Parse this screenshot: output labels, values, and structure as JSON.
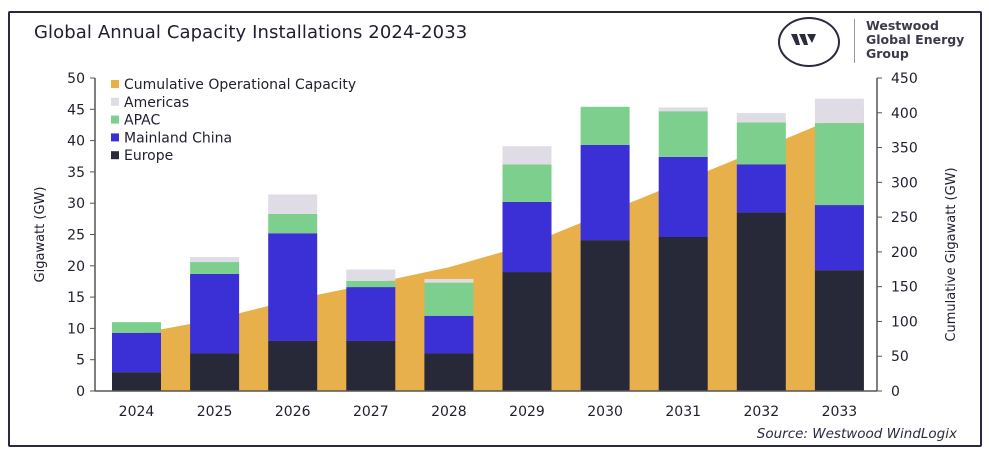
{
  "header": {
    "title": "Global Annual Capacity Installations 2024-2033",
    "logo": {
      "name": "westwood-logo",
      "text": [
        "Westwood",
        "Global Energy",
        "Group"
      ]
    }
  },
  "source": "Source: Westwood WindLogix",
  "chart_data": {
    "type": "bar",
    "stacked": true,
    "title": "Global Annual Capacity Installations 2024-2033",
    "categories": [
      "2024",
      "2025",
      "2026",
      "2027",
      "2028",
      "2029",
      "2030",
      "2031",
      "2032",
      "2033"
    ],
    "ylabel": "Gigawatt (GW)",
    "ylim": [
      0,
      50
    ],
    "yticks": [
      0,
      5,
      10,
      15,
      20,
      25,
      30,
      35,
      40,
      45,
      50
    ],
    "y2label": "Cumulative Gigawatt (GW)",
    "y2lim": [
      0,
      450
    ],
    "y2ticks": [
      0,
      50,
      100,
      150,
      200,
      250,
      300,
      350,
      400,
      450
    ],
    "grid": false,
    "legend_position": "top-left",
    "series": [
      {
        "name": "Europe",
        "color": "#272838",
        "values": [
          3,
          6,
          8,
          8,
          6,
          19,
          24.1,
          24.6,
          28.5,
          19.3
        ]
      },
      {
        "name": "Mainland China",
        "color": "#3b2fd6",
        "values": [
          6.3,
          12.7,
          17.2,
          8.6,
          6,
          11.2,
          15.2,
          12.8,
          7.7,
          10.4
        ]
      },
      {
        "name": "APAC",
        "color": "#7ccf8c",
        "values": [
          1.7,
          1.9,
          3.1,
          1,
          5.3,
          6,
          6.1,
          7.3,
          6.7,
          13.1
        ]
      },
      {
        "name": "Americas",
        "color": "#dfdce6",
        "values": [
          0,
          0.8,
          3.1,
          1.8,
          0.6,
          2.9,
          0,
          0.6,
          1.5,
          3.9
        ]
      }
    ],
    "area_series": {
      "name": "Cumulative Operational Capacity",
      "color": "#e8b04a",
      "axis": "right",
      "values": [
        82,
        103,
        131,
        154,
        178,
        210,
        256,
        302,
        348,
        395
      ]
    },
    "legend": [
      "Cumulative Operational Capacity",
      "Americas",
      "APAC",
      "Mainland China",
      "Europe"
    ]
  }
}
